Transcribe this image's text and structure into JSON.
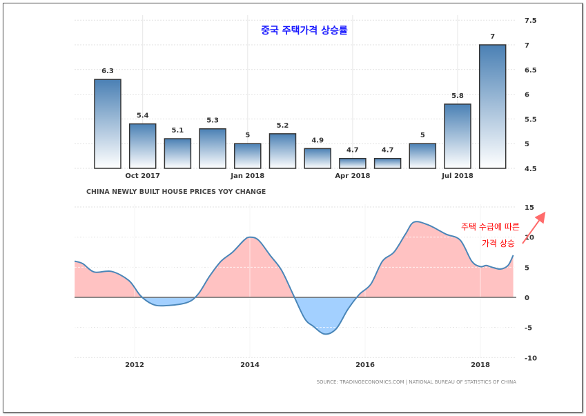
{
  "chart_data": [
    {
      "type": "bar",
      "title": "중국 주택가격 상승률",
      "subtitle": "CHINA NEWLY BUILT HOUSE PRICES YOY CHANGE",
      "values": [
        6.3,
        5.4,
        5.1,
        5.3,
        5,
        5.2,
        4.9,
        4.7,
        4.7,
        5,
        5.8,
        7
      ],
      "value_labels": [
        "6.3",
        "5.4",
        "5.1",
        "5.3",
        "5",
        "5.2",
        "4.9",
        "4.7",
        "4.7",
        "5",
        "5.8",
        "7"
      ],
      "xticks": [
        {
          "label": "Oct 2017",
          "index": 1
        },
        {
          "label": "Jan 2018",
          "index": 4
        },
        {
          "label": "Apr 2018",
          "index": 7
        },
        {
          "label": "Jul 2018",
          "index": 10
        }
      ],
      "ylim": [
        4.5,
        7.5
      ],
      "yticks": [
        "4.5",
        "5",
        "5.5",
        "6",
        "6.5",
        "7",
        "7.5"
      ],
      "grid": true,
      "colors": {
        "bar_top": "#4a80b4",
        "bar_bottom": "#ffffff",
        "title": "#1a1aff"
      }
    },
    {
      "type": "area",
      "xlim": [
        2010.96,
        2018.57
      ],
      "ylim": [
        -10,
        15
      ],
      "xticks": [
        "2012",
        "2014",
        "2016",
        "2018"
      ],
      "yticks": [
        "-10",
        "-5",
        "0",
        "5",
        "10",
        "15"
      ],
      "points": [
        [
          2010.96,
          6
        ],
        [
          2011.1,
          5.6
        ],
        [
          2011.3,
          4.2
        ],
        [
          2011.6,
          4.3
        ],
        [
          2011.9,
          2.8
        ],
        [
          2012.1,
          0.3
        ],
        [
          2012.3,
          -1.1
        ],
        [
          2012.5,
          -1.4
        ],
        [
          2012.9,
          -0.9
        ],
        [
          2013.1,
          0.5
        ],
        [
          2013.3,
          3.5
        ],
        [
          2013.5,
          6
        ],
        [
          2013.7,
          7.5
        ],
        [
          2013.9,
          9.5
        ],
        [
          2014.0,
          10
        ],
        [
          2014.15,
          9.5
        ],
        [
          2014.35,
          7
        ],
        [
          2014.55,
          4.5
        ],
        [
          2014.75,
          0.5
        ],
        [
          2014.95,
          -3.5
        ],
        [
          2015.1,
          -4.8
        ],
        [
          2015.3,
          -6.1
        ],
        [
          2015.5,
          -5.2
        ],
        [
          2015.7,
          -2
        ],
        [
          2015.9,
          0.5
        ],
        [
          2016.1,
          2.2
        ],
        [
          2016.3,
          6
        ],
        [
          2016.5,
          7.5
        ],
        [
          2016.7,
          10.5
        ],
        [
          2016.85,
          12.5
        ],
        [
          2017.1,
          12
        ],
        [
          2017.4,
          10.5
        ],
        [
          2017.65,
          9.5
        ],
        [
          2017.85,
          6
        ],
        [
          2018.0,
          5.1
        ],
        [
          2018.1,
          5.3
        ],
        [
          2018.2,
          5
        ],
        [
          2018.35,
          4.7
        ],
        [
          2018.48,
          5.3
        ],
        [
          2018.57,
          7
        ]
      ],
      "annotation": [
        "주택 수급에 따른",
        "가격 상승"
      ],
      "source": "SOURCE: TRADINGECONOMICS.COM | NATIONAL BUREAU OF STATISTICS OF CHINA",
      "colors": {
        "line": "#4a86b8",
        "positive": "#ffc2c2",
        "negative": "#a3d0ff",
        "annotation": "#ff0000"
      }
    }
  ]
}
